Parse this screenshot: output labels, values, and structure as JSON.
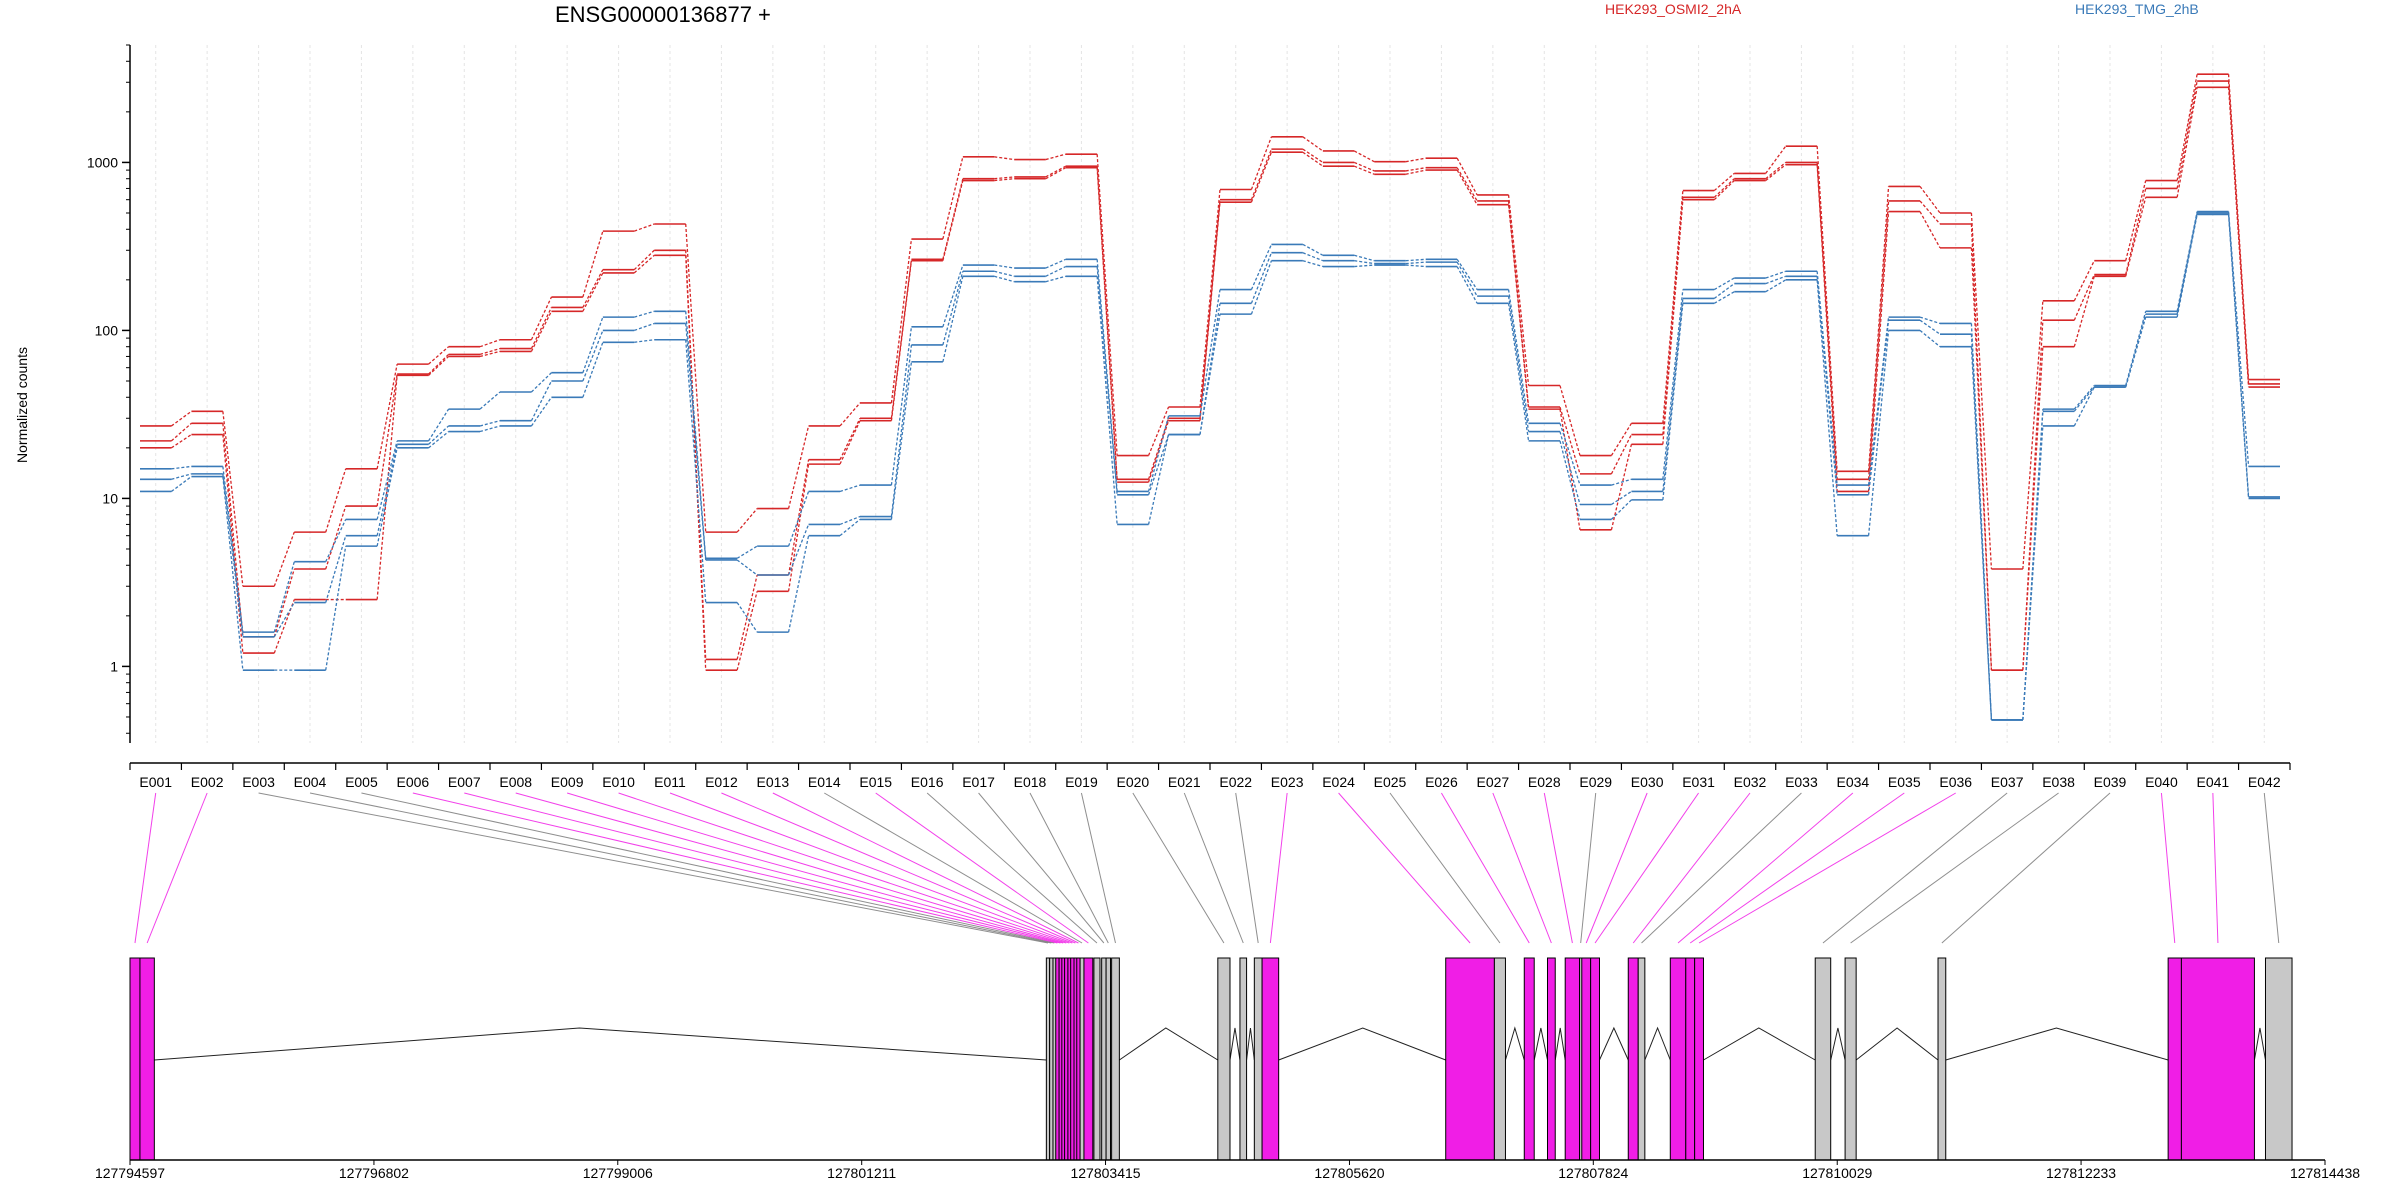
{
  "chart_data": {
    "type": "line",
    "title": "ENSG00000136877 +",
    "ylabel": "Normalized counts",
    "yscale": "log",
    "ylim": [
      0.35,
      5000
    ],
    "yticks": [
      1,
      10,
      100,
      1000
    ],
    "ytick_labels": [
      "1",
      "10",
      "100",
      "1000"
    ],
    "grid": "vertical dotted at exon centers",
    "legend_placement": "top",
    "categories": [
      "E001",
      "E002",
      "E003",
      "E004",
      "E005",
      "E006",
      "E007",
      "E008",
      "E009",
      "E010",
      "E011",
      "E012",
      "E013",
      "E014",
      "E015",
      "E016",
      "E017",
      "E018",
      "E019",
      "E020",
      "E021",
      "E022",
      "E023",
      "E024",
      "E025",
      "E026",
      "E027",
      "E028",
      "E029",
      "E030",
      "E031",
      "E032",
      "E033",
      "E034",
      "E035",
      "E036",
      "E037",
      "E038",
      "E039",
      "E040",
      "E041",
      "E042"
    ],
    "series": [
      {
        "name": "HEK293_OSMI2_2hA",
        "group": "OSMI2",
        "color": "#d62728",
        "values": [
          27,
          33,
          3.0,
          6.3,
          15,
          63,
          80,
          88,
          158,
          390,
          430,
          6.3,
          8.7,
          27,
          37,
          350,
          1080,
          1040,
          1120,
          18,
          35,
          690,
          1420,
          1170,
          1010,
          1060,
          640,
          47,
          18,
          28,
          680,
          860,
          1250,
          14.5,
          720,
          500,
          3.8,
          150,
          260,
          780,
          3350,
          51
        ]
      },
      {
        "name": "",
        "group": "OSMI2",
        "color": "#d62728",
        "values": [
          22,
          28,
          1.5,
          3.8,
          9,
          55,
          72,
          78,
          137,
          230,
          300,
          1.1,
          3.5,
          17,
          30,
          265,
          800,
          820,
          950,
          13,
          30,
          600,
          1200,
          1000,
          890,
          930,
          590,
          35,
          14,
          24,
          620,
          800,
          1000,
          13,
          590,
          430,
          0.95,
          115,
          215,
          700,
          3050,
          48
        ]
      },
      {
        "name": "",
        "group": "OSMI2",
        "color": "#d62728",
        "values": [
          20,
          24,
          1.2,
          2.5,
          2.5,
          54,
          70,
          75,
          130,
          220,
          280,
          0.95,
          2.8,
          16,
          29,
          260,
          780,
          800,
          930,
          12.5,
          29,
          580,
          1150,
          950,
          850,
          900,
          560,
          34,
          6.5,
          21,
          600,
          780,
          970,
          11,
          510,
          310,
          0.95,
          80,
          210,
          620,
          2800,
          46
        ]
      },
      {
        "name": "HEK293_TMG_2hB",
        "group": "TMG",
        "color": "#3a7ab8",
        "values": [
          15,
          15.5,
          1.6,
          4.2,
          7.5,
          22,
          34,
          43,
          56,
          120,
          130,
          4.4,
          5.2,
          11,
          12,
          105,
          245,
          235,
          265,
          11,
          31,
          175,
          325,
          280,
          260,
          265,
          175,
          28,
          12,
          13,
          175,
          205,
          225,
          12,
          120,
          110,
          0.48,
          34,
          47,
          130,
          510,
          15.5
        ]
      },
      {
        "name": "",
        "group": "TMG",
        "color": "#3a7ab8",
        "values": [
          13,
          14,
          1.5,
          2.4,
          6,
          21,
          27,
          29,
          50,
          100,
          110,
          4.3,
          3.5,
          7,
          7.8,
          82,
          225,
          210,
          240,
          10.5,
          24,
          145,
          290,
          260,
          250,
          255,
          160,
          25,
          9.2,
          11,
          155,
          190,
          210,
          10.5,
          115,
          95,
          0.48,
          33,
          46,
          125,
          500,
          10.2
        ]
      },
      {
        "name": "",
        "group": "TMG",
        "color": "#3a7ab8",
        "values": [
          11,
          13.5,
          0.95,
          0.95,
          5.2,
          20,
          25,
          27,
          40,
          85,
          88,
          2.4,
          1.6,
          6,
          7.5,
          65,
          210,
          195,
          210,
          7,
          24,
          125,
          260,
          240,
          245,
          240,
          145,
          22,
          7.5,
          9.8,
          145,
          170,
          200,
          6,
          100,
          80,
          0.48,
          27,
          46,
          120,
          490,
          10
        ]
      }
    ],
    "legend": [
      {
        "label": "HEK293_OSMI2_2hA",
        "color": "#d62728"
      },
      {
        "label": "HEK293_TMG_2hB",
        "color": "#3a7ab8"
      }
    ],
    "gene_model": {
      "coord_range": [
        127794597,
        127814438
      ],
      "coord_ticks": [
        127794597,
        127796802,
        127799006,
        127801211,
        127803415,
        127805620,
        127807824,
        127810029,
        127812233,
        127814438
      ],
      "coord_tick_labels": [
        "127794597",
        "127796802",
        "127799006",
        "127801211",
        "127803415",
        "127805620",
        "127807824",
        "127810029",
        "127812233",
        "127814438"
      ],
      "highlight_color": "#f01ee6",
      "normal_color": "#c8c8c8",
      "exons": [
        {
          "id": "E001",
          "start": 127794597,
          "end": 127794687,
          "highlight": true
        },
        {
          "id": "E002",
          "start": 127794687,
          "end": 127794817,
          "highlight": true
        },
        {
          "id": "E003",
          "start": 127802880,
          "end": 127802910,
          "highlight": false
        },
        {
          "id": "E004",
          "start": 127802910,
          "end": 127802940,
          "highlight": false
        },
        {
          "id": "E005",
          "start": 127802940,
          "end": 127802965,
          "highlight": false
        },
        {
          "id": "E006",
          "start": 127802965,
          "end": 127802995,
          "highlight": true
        },
        {
          "id": "E007",
          "start": 127802995,
          "end": 127803020,
          "highlight": true
        },
        {
          "id": "E008",
          "start": 127803020,
          "end": 127803045,
          "highlight": true
        },
        {
          "id": "E009",
          "start": 127803045,
          "end": 127803075,
          "highlight": true
        },
        {
          "id": "E010",
          "start": 127803075,
          "end": 127803100,
          "highlight": true
        },
        {
          "id": "E011",
          "start": 127803100,
          "end": 127803130,
          "highlight": true
        },
        {
          "id": "E012",
          "start": 127803130,
          "end": 127803155,
          "highlight": true
        },
        {
          "id": "E013",
          "start": 127803155,
          "end": 127803185,
          "highlight": true
        },
        {
          "id": "E014",
          "start": 127803185,
          "end": 127803220,
          "highlight": false
        },
        {
          "id": "E015",
          "start": 127803220,
          "end": 127803300,
          "highlight": true
        },
        {
          "id": "E016",
          "start": 127803310,
          "end": 127803365,
          "highlight": false
        },
        {
          "id": "E017",
          "start": 127803380,
          "end": 127803420,
          "highlight": false
        },
        {
          "id": "E018",
          "start": 127803420,
          "end": 127803460,
          "highlight": false
        },
        {
          "id": "E019",
          "start": 127803470,
          "end": 127803540,
          "highlight": false
        },
        {
          "id": "E020",
          "start": 127804430,
          "end": 127804540,
          "highlight": false
        },
        {
          "id": "E021",
          "start": 127804630,
          "end": 127804690,
          "highlight": false
        },
        {
          "id": "E022",
          "start": 127804760,
          "end": 127804830,
          "highlight": false
        },
        {
          "id": "E023",
          "start": 127804830,
          "end": 127804980,
          "highlight": true
        },
        {
          "id": "E024",
          "start": 127806490,
          "end": 127806930,
          "highlight": true
        },
        {
          "id": "E025",
          "start": 127806930,
          "end": 127807030,
          "highlight": false
        },
        {
          "id": "E026",
          "start": 127807200,
          "end": 127807290,
          "highlight": true
        },
        {
          "id": "E027",
          "start": 127807410,
          "end": 127807480,
          "highlight": true
        },
        {
          "id": "E028",
          "start": 127807570,
          "end": 127807700,
          "highlight": true
        },
        {
          "id": "E029",
          "start": 127807700,
          "end": 127807720,
          "highlight": false
        },
        {
          "id": "E030",
          "start": 127807720,
          "end": 127807800,
          "highlight": true
        },
        {
          "id": "E031",
          "start": 127807800,
          "end": 127807880,
          "highlight": true
        },
        {
          "id": "E032",
          "start": 127808140,
          "end": 127808230,
          "highlight": true
        },
        {
          "id": "E033",
          "start": 127808230,
          "end": 127808290,
          "highlight": false
        },
        {
          "id": "E034",
          "start": 127808520,
          "end": 127808660,
          "highlight": true
        },
        {
          "id": "E035",
          "start": 127808660,
          "end": 127808740,
          "highlight": true
        },
        {
          "id": "E036",
          "start": 127808740,
          "end": 127808820,
          "highlight": true
        },
        {
          "id": "E037",
          "start": 127809830,
          "end": 127809970,
          "highlight": false
        },
        {
          "id": "E038",
          "start": 127810100,
          "end": 127810200,
          "highlight": false
        },
        {
          "id": "E039",
          "start": 127810940,
          "end": 127811010,
          "highlight": false
        },
        {
          "id": "E040",
          "start": 127813020,
          "end": 127813140,
          "highlight": true
        },
        {
          "id": "E041",
          "start": 127813140,
          "end": 127813800,
          "highlight": true
        },
        {
          "id": "E042",
          "start": 127813900,
          "end": 127814140,
          "highlight": false
        }
      ],
      "introns": [
        {
          "from": 127794817,
          "to": 127802880,
          "peak": 127798660
        },
        {
          "from": 127803540,
          "to": 127804430,
          "peak": 127803960
        },
        {
          "from": 127804540,
          "to": 127804630,
          "peak": 127804585
        },
        {
          "from": 127804690,
          "to": 127804760,
          "peak": 127804725
        },
        {
          "from": 127804980,
          "to": 127806490,
          "peak": 127805740
        },
        {
          "from": 127807030,
          "to": 127807200,
          "peak": 127807115
        },
        {
          "from": 127807290,
          "to": 127807410,
          "peak": 127807350
        },
        {
          "from": 127807480,
          "to": 127807570,
          "peak": 127807525
        },
        {
          "from": 127807880,
          "to": 127808140,
          "peak": 127808010
        },
        {
          "from": 127808290,
          "to": 127808520,
          "peak": 127808405
        },
        {
          "from": 127808820,
          "to": 127809830,
          "peak": 127809320
        },
        {
          "from": 127809970,
          "to": 127810100,
          "peak": 127810035
        },
        {
          "from": 127810200,
          "to": 127810940,
          "peak": 127810570
        },
        {
          "from": 127811010,
          "to": 127813020,
          "peak": 127812010
        },
        {
          "from": 127813800,
          "to": 127813900,
          "peak": 127813850
        }
      ]
    }
  }
}
